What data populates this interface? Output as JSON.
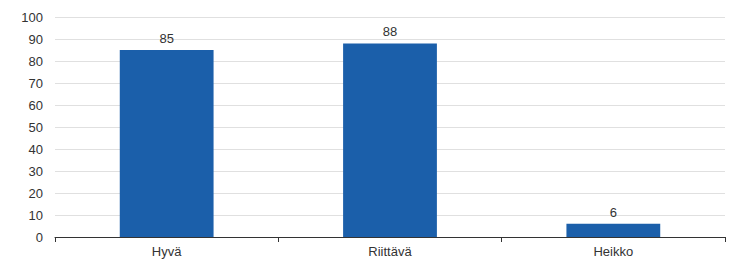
{
  "chart_data": {
    "type": "bar",
    "categories": [
      "Hyvä",
      "Riittävä",
      "Heikko"
    ],
    "values": [
      85,
      88,
      6
    ],
    "color": "#1b5faa",
    "ylim": [
      0,
      100
    ],
    "yticks": [
      0,
      10,
      20,
      30,
      40,
      50,
      60,
      70,
      80,
      90,
      100
    ],
    "grid": true,
    "data_labels": true
  }
}
